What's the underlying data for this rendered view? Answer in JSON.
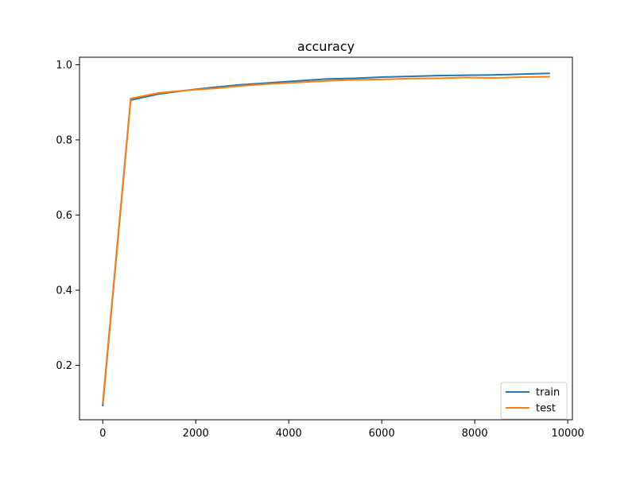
{
  "chart_data": {
    "type": "line",
    "title": "accuracy",
    "xlabel": "",
    "ylabel": "",
    "xlim": [
      -500,
      10100
    ],
    "ylim": [
      0.055,
      1.02
    ],
    "xticks": [
      0,
      2000,
      4000,
      6000,
      8000,
      10000
    ],
    "yticks": [
      0.2,
      0.4,
      0.6,
      0.8,
      1.0
    ],
    "xtick_labels": [
      "0",
      "2000",
      "4000",
      "6000",
      "8000",
      "10000"
    ],
    "ytick_labels": [
      "0.2",
      "0.4",
      "0.6",
      "0.8",
      "1.0"
    ],
    "grid": false,
    "legend_position": "bottom-right",
    "x": [
      0,
      600,
      1200,
      1800,
      2400,
      3000,
      3600,
      4200,
      4800,
      5400,
      6000,
      6600,
      7200,
      7800,
      8400,
      9000,
      9600
    ],
    "series": [
      {
        "name": "train",
        "color": "#1f77b4",
        "values": [
          0.093,
          0.906,
          0.922,
          0.932,
          0.94,
          0.947,
          0.952,
          0.957,
          0.962,
          0.964,
          0.967,
          0.969,
          0.971,
          0.972,
          0.973,
          0.975,
          0.977
        ]
      },
      {
        "name": "test",
        "color": "#ff7f0e",
        "values": [
          0.1,
          0.91,
          0.925,
          0.932,
          0.937,
          0.944,
          0.949,
          0.953,
          0.957,
          0.96,
          0.961,
          0.963,
          0.964,
          0.966,
          0.965,
          0.967,
          0.968
        ]
      }
    ]
  }
}
